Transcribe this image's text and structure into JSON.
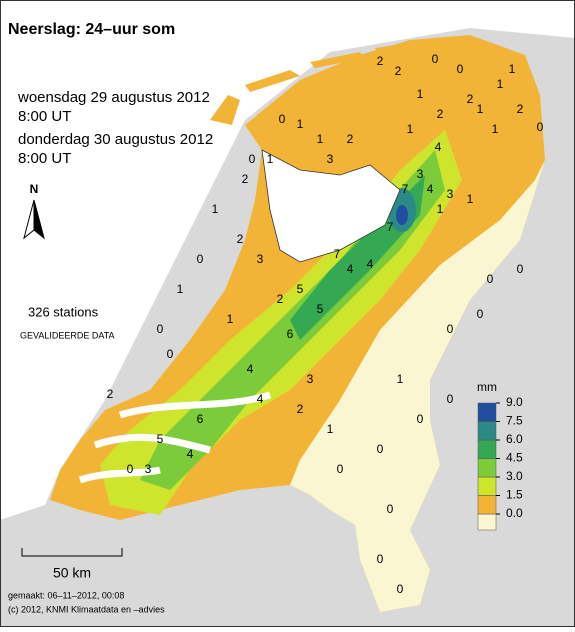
{
  "header": {
    "title": "Neerslag: 24–uur som",
    "period": [
      "woensdag 29 augustus 2012",
      "8:00 UT",
      "donderdag 30 augustus 2012",
      "8:00 UT"
    ],
    "stations_count": "326 stations",
    "status": "GEVALIDEERDE DATA"
  },
  "north": "N",
  "scale_bar": "50 km",
  "footer": [
    "gemaakt: 06–11–2012, 00:08",
    "(c) 2012, KNMI Klimaatdata en –advies"
  ],
  "legend": {
    "title": "mm",
    "ticks": [
      {
        "value": 0,
        "label": "0.0"
      },
      {
        "value": 1.5,
        "label": "1.5"
      },
      {
        "value": 3,
        "label": "3.0"
      },
      {
        "value": 4.5,
        "label": "4.5"
      },
      {
        "value": 6,
        "label": "6.0"
      },
      {
        "value": 7.5,
        "label": "7.5"
      },
      {
        "value": 9,
        "label": "9.0"
      }
    ],
    "colors": [
      "#fbf6d2",
      "#f2b437",
      "#cfe42d",
      "#7ccb3b",
      "#35a853",
      "#2b8a86",
      "#1f4f9e"
    ]
  },
  "stations": [
    2,
    2,
    1,
    0,
    0,
    2,
    1,
    1,
    2,
    0,
    1,
    1,
    0,
    1,
    3,
    2,
    4,
    1,
    0,
    2,
    1,
    1,
    3,
    4,
    7,
    7,
    3,
    1,
    1,
    2,
    4,
    7,
    4,
    5,
    2,
    1,
    0,
    1,
    2,
    3,
    5,
    6,
    4,
    1,
    0,
    0,
    0,
    2,
    6,
    4,
    5,
    3,
    4,
    3,
    2,
    1,
    0,
    0,
    0,
    0,
    1,
    0,
    0,
    0,
    0,
    0,
    0,
    0
  ]
}
